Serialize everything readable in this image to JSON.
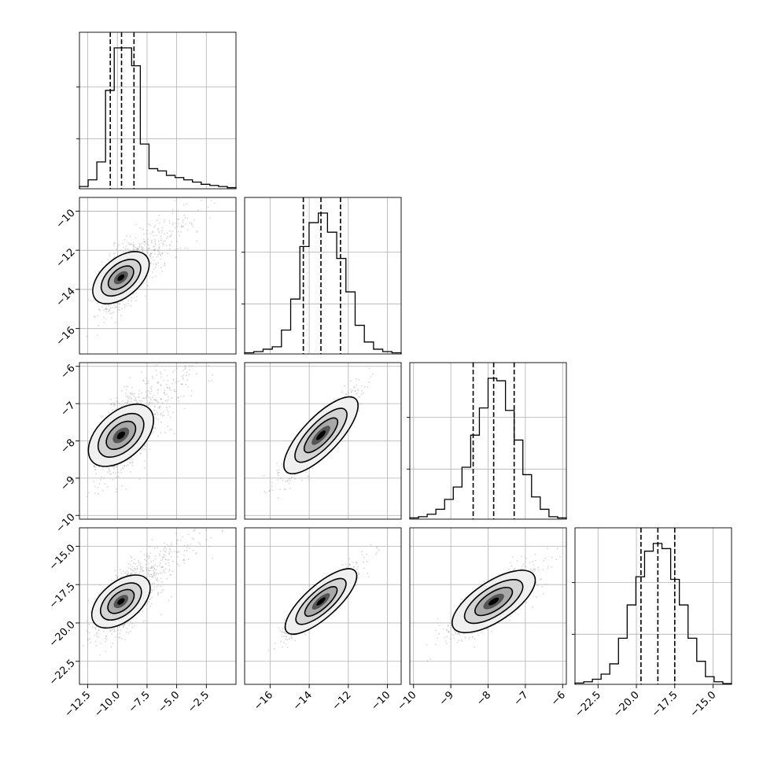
{
  "chart_data": {
    "type": "corner",
    "grid": true,
    "parameters": [
      {
        "range": [
          -13.2,
          0.0
        ],
        "xticks": [
          "−12.5",
          "−10.0",
          "−7.5",
          "−5.0",
          "−2.5"
        ],
        "xtick_values": [
          -12.5,
          -10.0,
          -7.5,
          -5.0,
          -2.5
        ],
        "quantiles": [
          -10.6,
          -9.65,
          -8.6
        ],
        "hist_counts": [
          1,
          4,
          12,
          44,
          63,
          63,
          55,
          20,
          9,
          8,
          6,
          5,
          4,
          3,
          2,
          1.5,
          1,
          0.5
        ]
      },
      {
        "range": [
          -17.3,
          -9.3
        ],
        "xticks": [
          "−16",
          "−14",
          "−12",
          "−10"
        ],
        "xtick_values": [
          -16,
          -14,
          -12,
          -10
        ],
        "yticks": [
          "−10",
          "−12",
          "−14",
          "−16"
        ],
        "ytick_values": [
          -10,
          -12,
          -14,
          -16
        ],
        "quantiles": [
          -14.3,
          -13.4,
          -12.4
        ],
        "hist_counts": [
          0.5,
          1,
          2,
          3,
          10,
          23,
          45,
          55,
          59,
          51,
          40,
          26,
          12,
          5,
          2,
          1,
          0.5
        ]
      },
      {
        "range": [
          -10.1,
          -5.9
        ],
        "xticks": [
          "−10",
          "−9",
          "−8",
          "−7",
          "−6"
        ],
        "xtick_values": [
          -10,
          -9,
          -8,
          -7,
          -6
        ],
        "yticks": [
          "−6",
          "−7",
          "−8",
          "−9",
          "−10"
        ],
        "ytick_values": [
          -6,
          -7,
          -8,
          -9,
          -10
        ],
        "quantiles": [
          -8.4,
          -7.85,
          -7.3
        ],
        "hist_counts": [
          0.5,
          1,
          2,
          4,
          8,
          13,
          21,
          34,
          45,
          57,
          56,
          44,
          32,
          18,
          9,
          4,
          1,
          0.5
        ]
      },
      {
        "range": [
          -24.0,
          -13.8
        ],
        "xticks": [
          "−22.5",
          "−20.0",
          "−17.5",
          "−15.0"
        ],
        "xtick_values": [
          -22.5,
          -20.0,
          -17.5,
          -15.0
        ],
        "yticks": [
          "−15.0",
          "−17.5",
          "−20.0",
          "−22.5"
        ],
        "ytick_values": [
          -15.0,
          -17.5,
          -20.0,
          -22.5
        ],
        "quantiles": [
          -19.7,
          -18.6,
          -17.5
        ],
        "hist_counts": [
          0.5,
          1,
          2,
          4,
          8,
          18,
          31,
          42,
          52,
          55,
          53,
          41,
          31,
          18,
          9,
          3,
          1,
          0.3
        ]
      }
    ],
    "scatter_panels": [
      {
        "x": 0,
        "y": 1,
        "center": [
          -9.7,
          -13.4
        ],
        "sd": [
          0.9,
          0.85
        ],
        "corr": 0.55,
        "tail": true
      },
      {
        "x": 0,
        "y": 2,
        "center": [
          -9.7,
          -7.85
        ],
        "sd": [
          0.95,
          0.55
        ],
        "corr": 0.5,
        "tail": true
      },
      {
        "x": 0,
        "y": 3,
        "center": [
          -9.7,
          -18.6
        ],
        "sd": [
          0.95,
          1.1
        ],
        "corr": 0.55,
        "tail": true
      },
      {
        "x": 1,
        "y": 2,
        "center": [
          -13.4,
          -7.85
        ],
        "sd": [
          0.9,
          0.55
        ],
        "corr": 0.9,
        "tail": false
      },
      {
        "x": 1,
        "y": 3,
        "center": [
          -13.4,
          -18.6
        ],
        "sd": [
          0.9,
          1.1
        ],
        "corr": 0.93,
        "tail": false
      },
      {
        "x": 2,
        "y": 3,
        "center": [
          -7.85,
          -18.6
        ],
        "sd": [
          0.55,
          1.1
        ],
        "corr": 0.8,
        "tail": false
      }
    ]
  }
}
